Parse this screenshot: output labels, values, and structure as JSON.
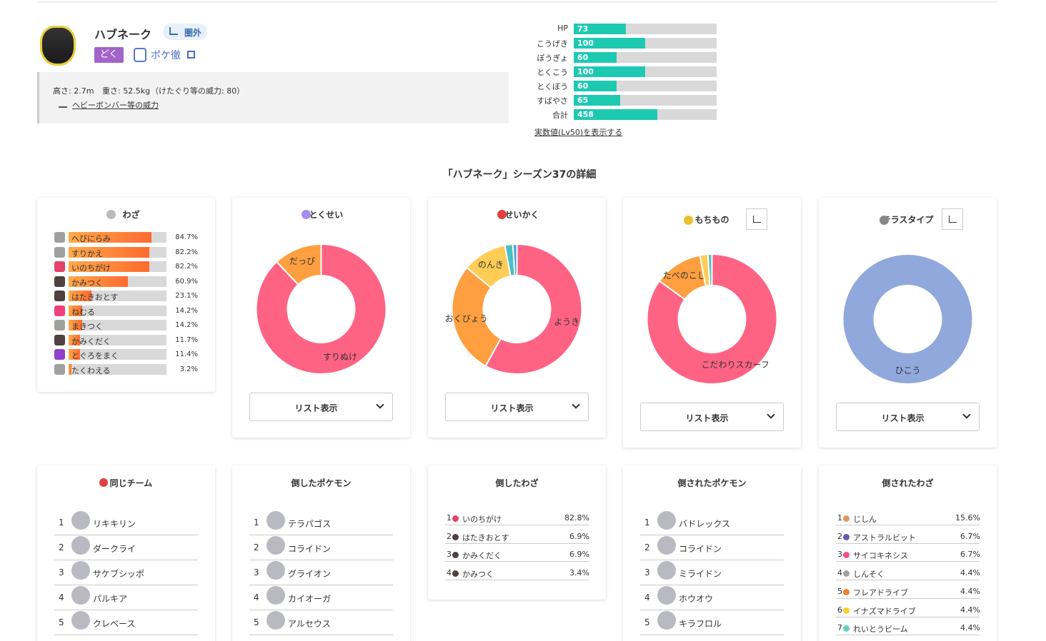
{
  "header": {
    "name": "ハブネーク",
    "rank_badge": "圏外",
    "type": "どく",
    "type_color": "#a264c8",
    "link": "ポケ徹",
    "height": "高さ: 2.7m",
    "weight": "重さ: 52.5kg",
    "kick_power": "（けたぐり等の威力: 80）",
    "heavy_link": "ヘビーボンバー等の威力"
  },
  "stats": {
    "color": "#1ec9b2",
    "rows": [
      {
        "label": "HP",
        "value": 73
      },
      {
        "label": "こうげき",
        "value": 100
      },
      {
        "label": "ぼうぎょ",
        "value": 60
      },
      {
        "label": "とくこう",
        "value": 100
      },
      {
        "label": "とくぼう",
        "value": 60
      },
      {
        "label": "すばやさ",
        "value": 65
      }
    ],
    "total": {
      "label": "合計",
      "value": 458
    },
    "link": "実数値(Lv50)を表示する"
  },
  "section_title": "「ハブネーク」シーズン37の詳細",
  "moves": {
    "title": "わざ",
    "rows": [
      {
        "name": "へびにらみ",
        "type_color": "#9fa19f",
        "value": 84.7,
        "value_label": "84.7%"
      },
      {
        "name": "すりかえ",
        "type_color": "#9fa19f",
        "value": 82.2,
        "value_label": "82.2%"
      },
      {
        "name": "いのちがけ",
        "type_color": "#e4426a",
        "value": 82.2,
        "value_label": "82.2%"
      },
      {
        "name": "かみつく",
        "type_color": "#50413f",
        "value": 60.9,
        "value_label": "60.9%"
      },
      {
        "name": "はたきおとす",
        "type_color": "#50413f",
        "value": 23.1,
        "value_label": "23.1%"
      },
      {
        "name": "ねむる",
        "type_color": "#ef4179",
        "value": 14.2,
        "value_label": "14.2%"
      },
      {
        "name": "まきつく",
        "type_color": "#9fa19f",
        "value": 14.2,
        "value_label": "14.2%"
      },
      {
        "name": "かみくだく",
        "type_color": "#50413f",
        "value": 11.7,
        "value_label": "11.7%"
      },
      {
        "name": "とぐろをまく",
        "type_color": "#9141cb",
        "value": 11.4,
        "value_label": "11.4%"
      },
      {
        "name": "たくわえる",
        "type_color": "#9fa19f",
        "value": 3.2,
        "value_label": "3.2%"
      }
    ]
  },
  "donuts": [
    {
      "title": "とくせい",
      "button": "リスト表示",
      "slices": [
        {
          "name": "すりぬけ",
          "value": 88,
          "color": "#ff6384"
        },
        {
          "name": "だっぴ",
          "value": 12,
          "color": "#ff9f40"
        }
      ]
    },
    {
      "title": "せいかく",
      "button": "リスト表示",
      "slices": [
        {
          "name": "ようき",
          "value": 58,
          "color": "#ff6384"
        },
        {
          "name": "おくびょう",
          "value": 28,
          "color": "#ff9f40"
        },
        {
          "name": "のんき",
          "value": 11,
          "color": "#ffcd56"
        },
        {
          "name": null,
          "value": 2,
          "color": "#4bc0c0"
        },
        {
          "name": null,
          "value": 1,
          "color": "#36a2eb"
        }
      ]
    },
    {
      "title": "もちもの",
      "button": "リスト表示",
      "slices": [
        {
          "name": "こだわりスカーフ",
          "value": 85,
          "color": "#ff6384"
        },
        {
          "name": "たべのこし",
          "value": 12,
          "color": "#ff9f40"
        },
        {
          "name": null,
          "value": 2,
          "color": "#ffcd56"
        },
        {
          "name": null,
          "value": 1,
          "color": "#4bc0c0"
        }
      ]
    },
    {
      "title": "テラスタイプ",
      "button": "リスト表示",
      "slices": [
        {
          "name": "ひこう",
          "value": 100,
          "color": "#90a8dc"
        }
      ]
    }
  ],
  "teammates": {
    "title": "同じチーム",
    "rows": [
      {
        "rank": 1,
        "name": "リキキリン"
      },
      {
        "rank": 2,
        "name": "ダークライ"
      },
      {
        "rank": 3,
        "name": "サケブシッポ"
      },
      {
        "rank": 4,
        "name": "パルキア"
      },
      {
        "rank": 5,
        "name": "クレベース"
      }
    ]
  },
  "defeated": {
    "title": "倒したポケモン",
    "rows": [
      {
        "rank": 1,
        "name": "テラパゴス"
      },
      {
        "rank": 2,
        "name": "コライドン"
      },
      {
        "rank": 3,
        "name": "グライオン"
      },
      {
        "rank": 4,
        "name": "カイオーガ"
      },
      {
        "rank": 5,
        "name": "アルセウス"
      }
    ]
  },
  "defeating_moves": {
    "title": "倒したわざ",
    "rows": [
      {
        "rank": 1,
        "name": "いのちがけ",
        "color": "#e4426a",
        "value": 82.8,
        "value_label": "82.8%"
      },
      {
        "rank": 2,
        "name": "はたきおとす",
        "color": "#50413f",
        "value": 6.9,
        "value_label": "6.9%"
      },
      {
        "rank": 3,
        "name": "かみくだく",
        "color": "#50413f",
        "value": 6.9,
        "value_label": "6.9%"
      },
      {
        "rank": 4,
        "name": "かみつく",
        "color": "#50413f",
        "value": 3.4,
        "value_label": "3.4%"
      }
    ]
  },
  "defeated_by": {
    "title": "倒されたポケモン",
    "rows": [
      {
        "rank": 1,
        "name": "バドレックス"
      },
      {
        "rank": 2,
        "name": "コライドン"
      },
      {
        "rank": 3,
        "name": "ミライドン"
      },
      {
        "rank": 4,
        "name": "ホウオウ"
      },
      {
        "rank": 5,
        "name": "キラフロル"
      }
    ]
  },
  "defeated_by_moves": {
    "title": "倒されたわざ",
    "rows": [
      {
        "rank": 1,
        "name": "じしん",
        "color": "#e0955a",
        "value": 15.6,
        "value_label": "15.6%"
      },
      {
        "rank": 2,
        "name": "アストラルビット",
        "color": "#6a5bb0",
        "value": 6.7,
        "value_label": "6.7%"
      },
      {
        "rank": 3,
        "name": "サイコキネシス",
        "color": "#f05080",
        "value": 6.7,
        "value_label": "6.7%"
      },
      {
        "rank": 4,
        "name": "しんそく",
        "color": "#a0a0a0",
        "value": 4.4,
        "value_label": "4.4%"
      },
      {
        "rank": 5,
        "name": "フレアドライブ",
        "color": "#f08030",
        "value": 4.4,
        "value_label": "4.4%"
      },
      {
        "rank": 6,
        "name": "イナズマドライブ",
        "color": "#f8d030",
        "value": 4.4,
        "value_label": "4.4%"
      },
      {
        "rank": 7,
        "name": "れいとうビーム",
        "color": "#60d0c0",
        "value": 4.4,
        "value_label": "4.4%"
      }
    ]
  }
}
